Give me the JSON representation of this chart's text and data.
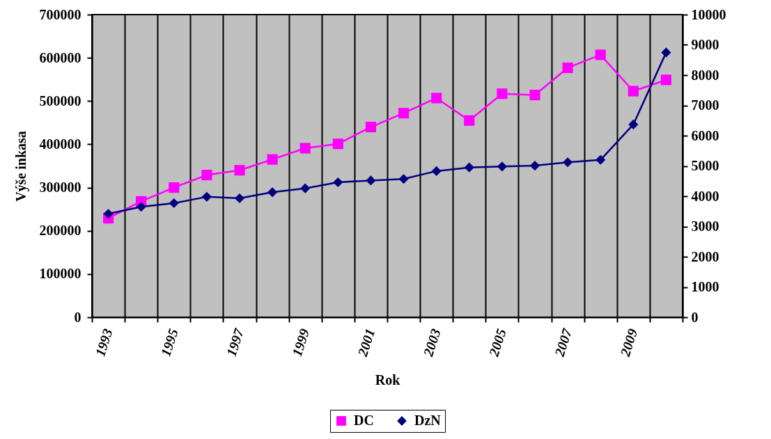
{
  "chart_data": {
    "type": "line",
    "xlabel": "Rok",
    "ylabel": "Výše inkasa",
    "categories": [
      "1993",
      null,
      "1995",
      null,
      "1997",
      null,
      "1999",
      null,
      "2001",
      null,
      "2003",
      null,
      "2005",
      null,
      "2007",
      null,
      "2009",
      null
    ],
    "series": [
      {
        "name": "DC",
        "color": "#ff00ff",
        "marker": "square",
        "values": [
          229000,
          268000,
          300000,
          329000,
          340000,
          365000,
          391000,
          401000,
          440000,
          472000,
          507000,
          455000,
          517000,
          514000,
          577000,
          607000,
          523000,
          549000
        ]
      },
      {
        "name": "DzN",
        "color": "#000080",
        "marker": "diamond",
        "axis": "y2",
        "values": [
          3420,
          3650,
          3770,
          3980,
          3930,
          4130,
          4260,
          4460,
          4520,
          4570,
          4830,
          4950,
          4980,
          5010,
          5120,
          5200,
          6370,
          8750
        ]
      }
    ],
    "ylim": [
      0,
      700000
    ],
    "yticks": [
      0,
      100000,
      200000,
      300000,
      400000,
      500000,
      600000,
      700000
    ],
    "y2lim": [
      0,
      10000
    ],
    "y2ticks": [
      0,
      1000,
      2000,
      3000,
      4000,
      5000,
      6000,
      7000,
      8000,
      9000,
      10000
    ],
    "grid": "x",
    "legend": "bottom"
  }
}
